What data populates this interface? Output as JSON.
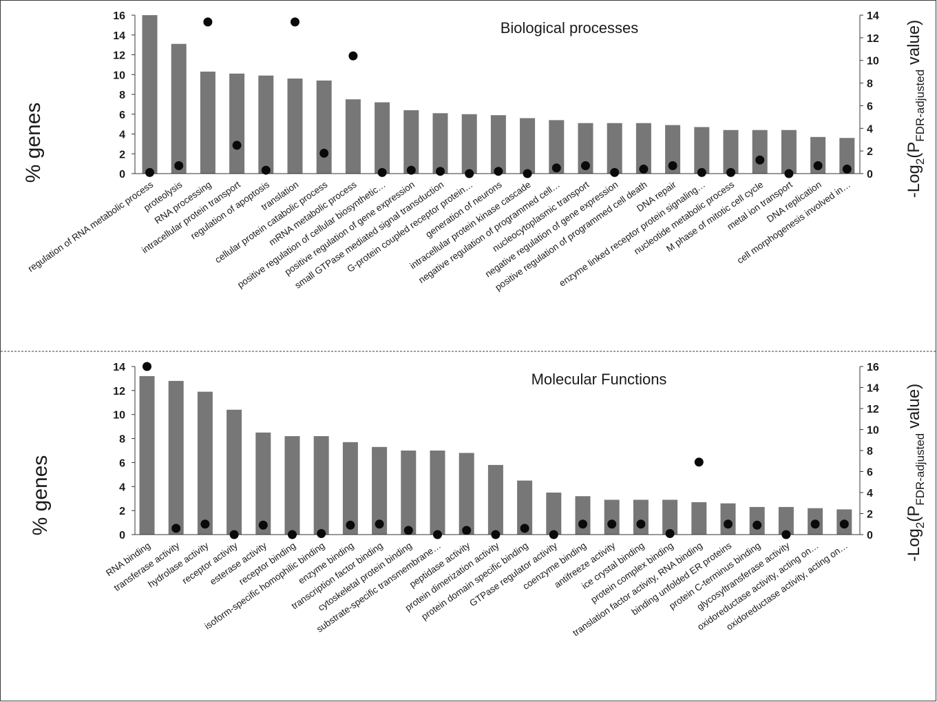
{
  "chart_data": [
    {
      "type": "bar",
      "title": "Biological processes",
      "ylabel": "% genes",
      "y2label_parts": [
        "-Log",
        "2",
        "(P",
        "FDR-adjusted",
        " value)"
      ],
      "ylim": [
        0,
        16
      ],
      "yticks": [
        0,
        2,
        4,
        6,
        8,
        10,
        12,
        14,
        16
      ],
      "y2lim": [
        0,
        14
      ],
      "y2ticks": [
        0,
        2,
        4,
        6,
        8,
        10,
        12,
        14
      ],
      "categories": [
        "regulation of RNA metabolic process",
        "proteolysis",
        "RNA processing",
        "intracellular protein transport",
        "regulation of apoptosis",
        "translation",
        "cellular protein catabolic process",
        "mRNA metabolic process",
        "positive regulation of cellular biosynthetic…",
        "positive regulation of gene expression",
        "small GTPase mediated signal transduction",
        "G-protein coupled receptor protein…",
        "generation of neurons",
        "intracellular protein kinase cascade",
        "negative regulation of programmed cell…",
        "nucleocytoplasmic transport",
        "negative regulation of gene expression",
        "positive regulation of programmed cell death",
        "DNA repair",
        "enzyme linked receptor protein signaling…",
        "nucleotide metabolic process",
        "M phase of mitotic cell cycle",
        "metal ion transport",
        "DNA replication",
        "cell morphogenesis involved in…"
      ],
      "series": [
        {
          "name": "% genes",
          "kind": "bar",
          "axis": "left",
          "values": [
            16.0,
            13.1,
            10.3,
            10.1,
            9.9,
            9.6,
            9.4,
            7.5,
            7.2,
            6.4,
            6.1,
            6.0,
            5.9,
            5.6,
            5.4,
            5.1,
            5.1,
            5.1,
            4.9,
            4.7,
            4.4,
            4.4,
            4.4,
            3.7,
            3.6
          ]
        },
        {
          "name": "-Log2(P FDR-adjusted value)",
          "kind": "scatter",
          "axis": "right",
          "values": [
            0.1,
            0.7,
            13.4,
            2.5,
            0.3,
            13.4,
            1.8,
            10.4,
            0.1,
            0.3,
            0.2,
            0.0,
            0.2,
            0.0,
            0.5,
            0.7,
            0.1,
            0.4,
            0.7,
            0.1,
            0.1,
            1.2,
            0.0,
            0.7,
            0.4
          ]
        }
      ]
    },
    {
      "type": "bar",
      "title": "Molecular Functions",
      "ylabel": "% genes",
      "y2label_parts": [
        "-Log",
        "2",
        "(P",
        "FDR-adjusted",
        " value)"
      ],
      "ylim": [
        0,
        14
      ],
      "yticks": [
        0,
        2,
        4,
        6,
        8,
        10,
        12,
        14
      ],
      "y2lim": [
        0,
        16
      ],
      "y2ticks": [
        0,
        2,
        4,
        6,
        8,
        10,
        12,
        14,
        16
      ],
      "categories": [
        "RNA binding",
        "transferase activity",
        "hydrolase activity",
        "receptor activity",
        "esterase activity",
        "receptor binding",
        "isoform-specific homophilic binding",
        "enzyme binding",
        "transcription factor binding",
        "cytoskeletal protein binding",
        "substrate-specific transmembrane…",
        "peptidase activity",
        "protein dimerization activity",
        "protein domain specific binding",
        "GTPase regulator activity",
        "coenzyme binding",
        "antifreeze activity",
        "ice crystal binding",
        "protein complex binding",
        "translation factor activity, RNA binding",
        "binding unfolded ER proteins",
        "protein C-terminus binding",
        "glycosyltransferase activity",
        "oxidoreductase activity, acting on…",
        "oxidoreductase activity, acting on…"
      ],
      "series": [
        {
          "name": "% genes",
          "kind": "bar",
          "axis": "left",
          "values": [
            13.2,
            12.8,
            11.9,
            10.4,
            8.5,
            8.2,
            8.2,
            7.7,
            7.3,
            7.0,
            7.0,
            6.8,
            5.8,
            4.5,
            3.5,
            3.2,
            2.9,
            2.9,
            2.9,
            2.7,
            2.6,
            2.3,
            2.3,
            2.2,
            2.1
          ]
        },
        {
          "name": "-Log2(P FDR-adjusted value)",
          "kind": "scatter",
          "axis": "right",
          "values": [
            16.0,
            0.6,
            1.0,
            0.0,
            0.9,
            0.0,
            0.1,
            0.9,
            1.0,
            0.4,
            0.0,
            0.4,
            0.0,
            0.6,
            0.0,
            1.0,
            1.0,
            1.0,
            0.1,
            6.9,
            1.0,
            0.9,
            0.0,
            1.0,
            1.0
          ]
        }
      ]
    }
  ],
  "colors": {
    "bar": "#777777",
    "dot": "#0a0a0a",
    "axis": "#333333",
    "text": "#1a1a1a"
  }
}
